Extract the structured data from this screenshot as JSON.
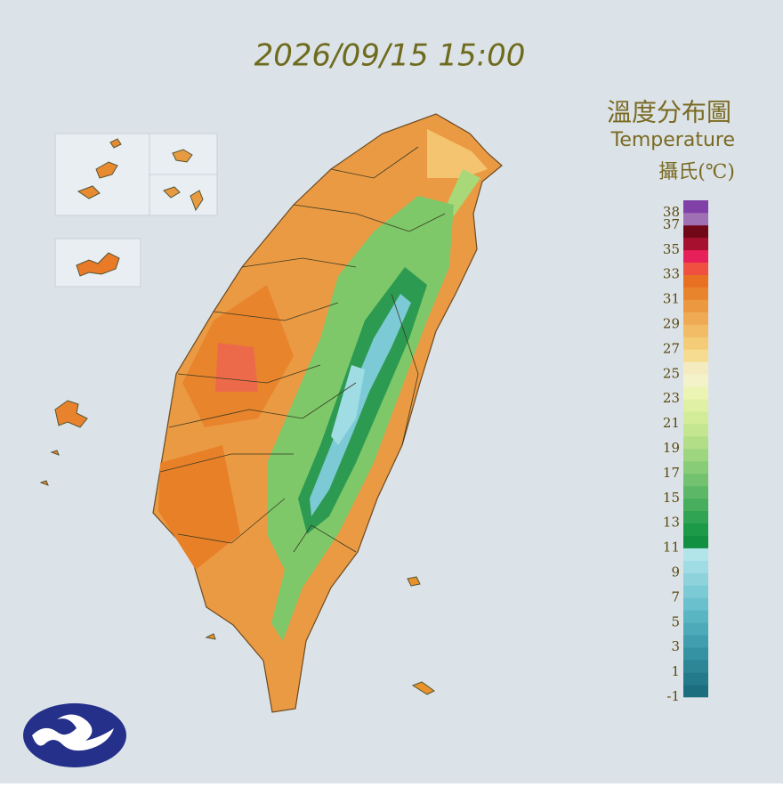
{
  "chart_data": {
    "type": "map",
    "timestamp": "2026/09/15 15:00",
    "title": "溫度分布圖",
    "subtitle": "Temperature",
    "unit_label": "攝氏(℃)",
    "legend": {
      "range": [
        -1,
        39
      ],
      "ticks": [
        38,
        37,
        35,
        33,
        31,
        29,
        27,
        25,
        23,
        21,
        19,
        17,
        15,
        13,
        11,
        9,
        7,
        5,
        3,
        1,
        -1
      ],
      "colors": [
        "#1a6e7e",
        "#237a8a",
        "#2c8696",
        "#3592a2",
        "#409eae",
        "#4caab9",
        "#5ab5c3",
        "#6ac0cc",
        "#7ccad5",
        "#8ed3dc",
        "#a0dce3",
        "#b2e5ea",
        "#109040",
        "#1c9a48",
        "#30a452",
        "#46ae5c",
        "#5cb866",
        "#72c270",
        "#88cc78",
        "#9ed680",
        "#b2de88",
        "#c4e690",
        "#d2ec98",
        "#e0f0a4",
        "#ecf4b4",
        "#f4f2c8",
        "#f4ecc0",
        "#f6dc90",
        "#f4cc78",
        "#f2bc66",
        "#f0aa54",
        "#ec9840",
        "#e8842c",
        "#e87022",
        "#f05040",
        "#e8205a",
        "#a81030",
        "#700818",
        "#a070b4",
        "#8040a8"
      ]
    }
  }
}
